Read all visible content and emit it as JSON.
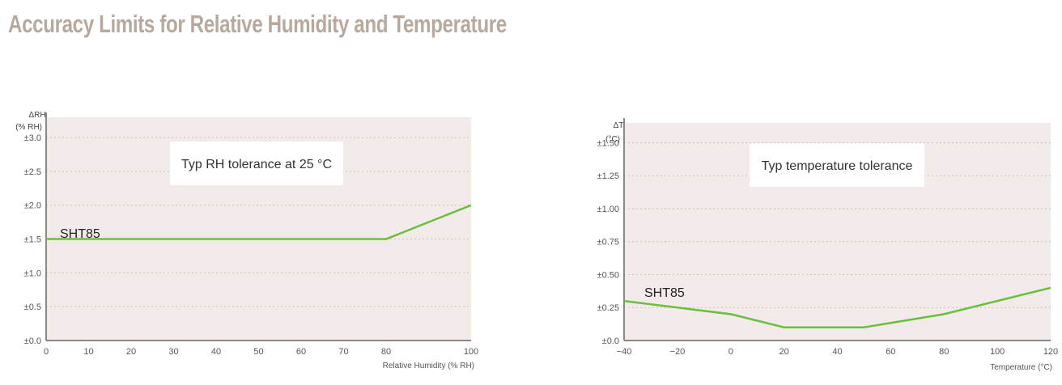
{
  "page": {
    "title": "Accuracy Limits for Relative Humidity and Temperature"
  },
  "colors": {
    "plot_bg": "#f3ebe9",
    "line": "#6abf3c",
    "axis": "#888888",
    "grid": "#c9bfbb",
    "title": "#b9a99d"
  },
  "chart_data": [
    {
      "type": "line",
      "ylabel_line1": "ΔRH",
      "ylabel_line2": "(% RH)",
      "xlabel": "Relative Humidity (% RH)",
      "annotation": "Typ RH tolerance at 25 °C",
      "xlim": [
        0,
        100
      ],
      "ylim": [
        0,
        3.3
      ],
      "xticks": [
        0,
        10,
        20,
        30,
        40,
        50,
        60,
        70,
        80,
        100
      ],
      "xtick_labels": [
        "0",
        "10",
        "20",
        "30",
        "40",
        "50",
        "60",
        "70",
        "80",
        "100"
      ],
      "yticks": [
        0,
        0.5,
        1.0,
        1.5,
        2.0,
        2.5,
        3.0
      ],
      "ytick_labels": [
        "±0.0",
        "±0.5",
        "±1.0",
        "±1.5",
        "±2.0",
        "±2.5",
        "±3.0"
      ],
      "grid": true,
      "series": [
        {
          "name": "SHT85",
          "x": [
            0,
            80,
            100
          ],
          "y": [
            1.5,
            1.5,
            2.0
          ]
        }
      ]
    },
    {
      "type": "line",
      "ylabel_line1": "ΔT",
      "ylabel_line2": "(°C)",
      "xlabel": "Temperature (°C)",
      "annotation": "Typ temperature tolerance",
      "xlim": [
        -40,
        120
      ],
      "ylim": [
        0,
        1.65
      ],
      "xticks": [
        -40,
        -20,
        0,
        20,
        40,
        60,
        80,
        100,
        120
      ],
      "xtick_labels": [
        "−40",
        "−20",
        "0",
        "20",
        "40",
        "60",
        "80",
        "100",
        "120"
      ],
      "yticks": [
        0,
        0.25,
        0.5,
        0.75,
        1.0,
        1.25,
        1.5
      ],
      "ytick_labels": [
        "±0.0",
        "±0.25",
        "±0.50",
        "±0.75",
        "±1.00",
        "±1.25",
        "±1.50"
      ],
      "grid": true,
      "series": [
        {
          "name": "SHT85",
          "x": [
            -40,
            0,
            20,
            50,
            80,
            120
          ],
          "y": [
            0.3,
            0.2,
            0.1,
            0.1,
            0.2,
            0.4
          ]
        }
      ]
    }
  ]
}
